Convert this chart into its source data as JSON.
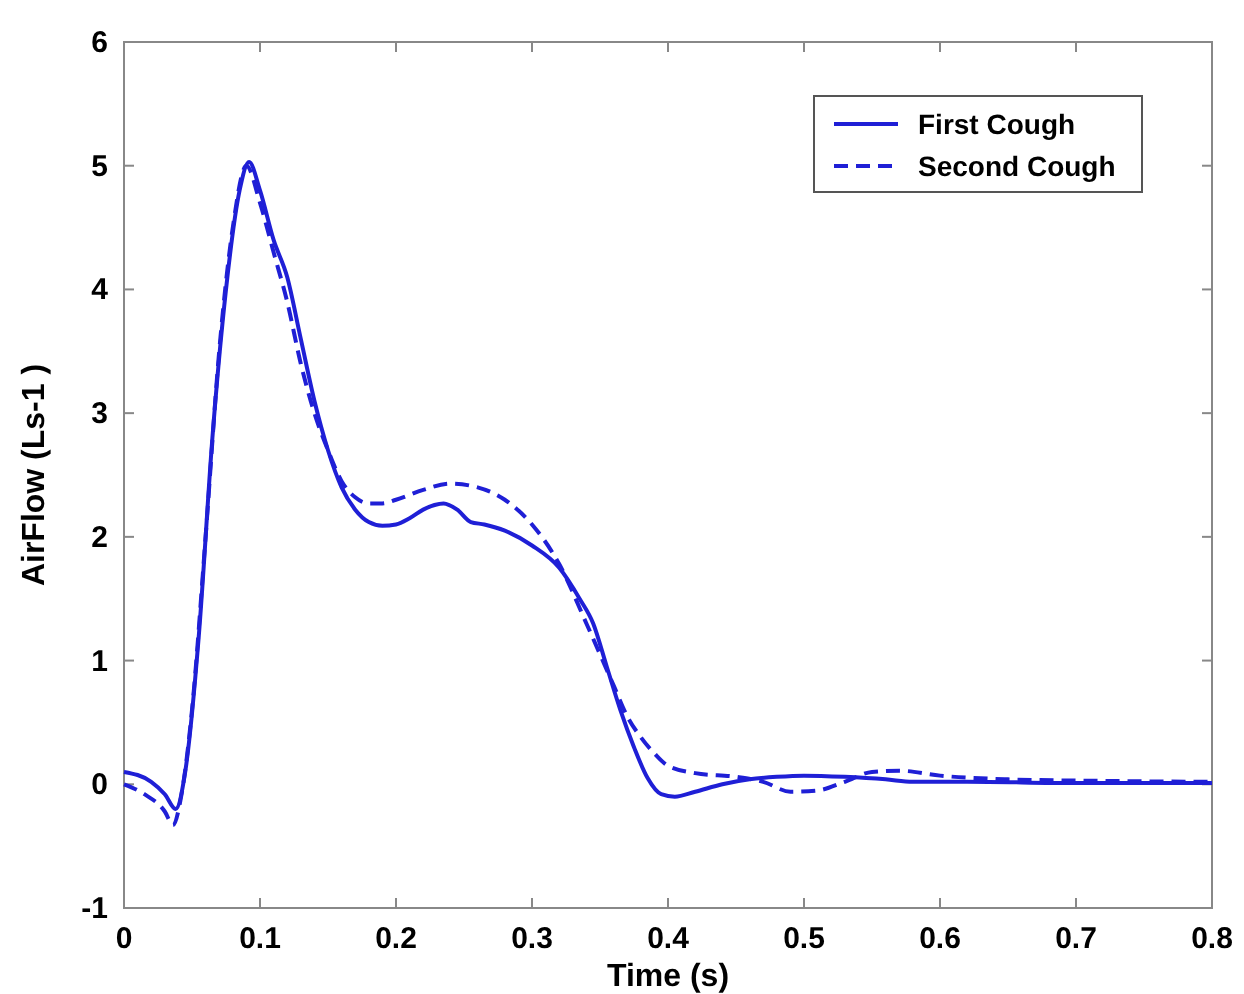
{
  "chart_data": {
    "type": "line",
    "xlabel": "Time (s)",
    "ylabel": "AirFlow (Ls-1 )",
    "xlim": [
      0,
      0.8
    ],
    "ylim": [
      -1,
      6
    ],
    "xticks": [
      0,
      0.1,
      0.2,
      0.3,
      0.4,
      0.5,
      0.6,
      0.7,
      0.8
    ],
    "yticks": [
      -1,
      0,
      1,
      2,
      3,
      4,
      5,
      6
    ],
    "grid": false,
    "legend": "top right",
    "series": [
      {
        "name": "First Cough",
        "color": "#1f1fd6",
        "line_style": "solid",
        "x": [
          0,
          0.02,
          0.03,
          0.038,
          0.045,
          0.055,
          0.065,
          0.075,
          0.085,
          0.092,
          0.1,
          0.11,
          0.12,
          0.13,
          0.14,
          0.15,
          0.16,
          0.17,
          0.18,
          0.19,
          0.2,
          0.21,
          0.22,
          0.235,
          0.245,
          0.255,
          0.265,
          0.28,
          0.3,
          0.32,
          0.335,
          0.345,
          0.355,
          0.365,
          0.375,
          0.385,
          0.395,
          0.405,
          0.42,
          0.44,
          0.46,
          0.48,
          0.5,
          0.53,
          0.56,
          0.58,
          0.62,
          0.7,
          0.8
        ],
        "values": [
          0.1,
          0.02,
          -0.08,
          -0.2,
          0.1,
          1.2,
          2.8,
          4.0,
          4.8,
          5.03,
          4.8,
          4.4,
          4.1,
          3.6,
          3.1,
          2.7,
          2.4,
          2.22,
          2.12,
          2.09,
          2.1,
          2.15,
          2.22,
          2.27,
          2.22,
          2.12,
          2.1,
          2.05,
          1.93,
          1.75,
          1.5,
          1.3,
          0.95,
          0.6,
          0.3,
          0.05,
          -0.08,
          -0.1,
          -0.06,
          0,
          0.04,
          0.06,
          0.07,
          0.06,
          0.04,
          0.02,
          0.02,
          0.01,
          0.01
        ]
      },
      {
        "name": "Second Cough",
        "color": "#1f1fd6",
        "line_style": "dashed",
        "x": [
          0,
          0.015,
          0.03,
          0.036,
          0.042,
          0.05,
          0.06,
          0.07,
          0.08,
          0.09,
          0.1,
          0.11,
          0.12,
          0.13,
          0.14,
          0.15,
          0.16,
          0.17,
          0.18,
          0.19,
          0.2,
          0.22,
          0.24,
          0.26,
          0.28,
          0.3,
          0.32,
          0.34,
          0.36,
          0.37,
          0.38,
          0.39,
          0.4,
          0.42,
          0.45,
          0.47,
          0.49,
          0.51,
          0.53,
          0.55,
          0.57,
          0.6,
          0.65,
          0.7,
          0.8
        ],
        "values": [
          0,
          -0.08,
          -0.22,
          -0.33,
          -0.1,
          0.6,
          2.0,
          3.5,
          4.5,
          5.0,
          4.7,
          4.3,
          3.9,
          3.4,
          3.0,
          2.7,
          2.45,
          2.32,
          2.27,
          2.27,
          2.3,
          2.38,
          2.43,
          2.4,
          2.3,
          2.1,
          1.78,
          1.3,
          0.8,
          0.55,
          0.38,
          0.25,
          0.15,
          0.09,
          0.06,
          0.02,
          -0.06,
          -0.05,
          0.02,
          0.1,
          0.11,
          0.07,
          0.04,
          0.03,
          0.02
        ]
      }
    ]
  }
}
